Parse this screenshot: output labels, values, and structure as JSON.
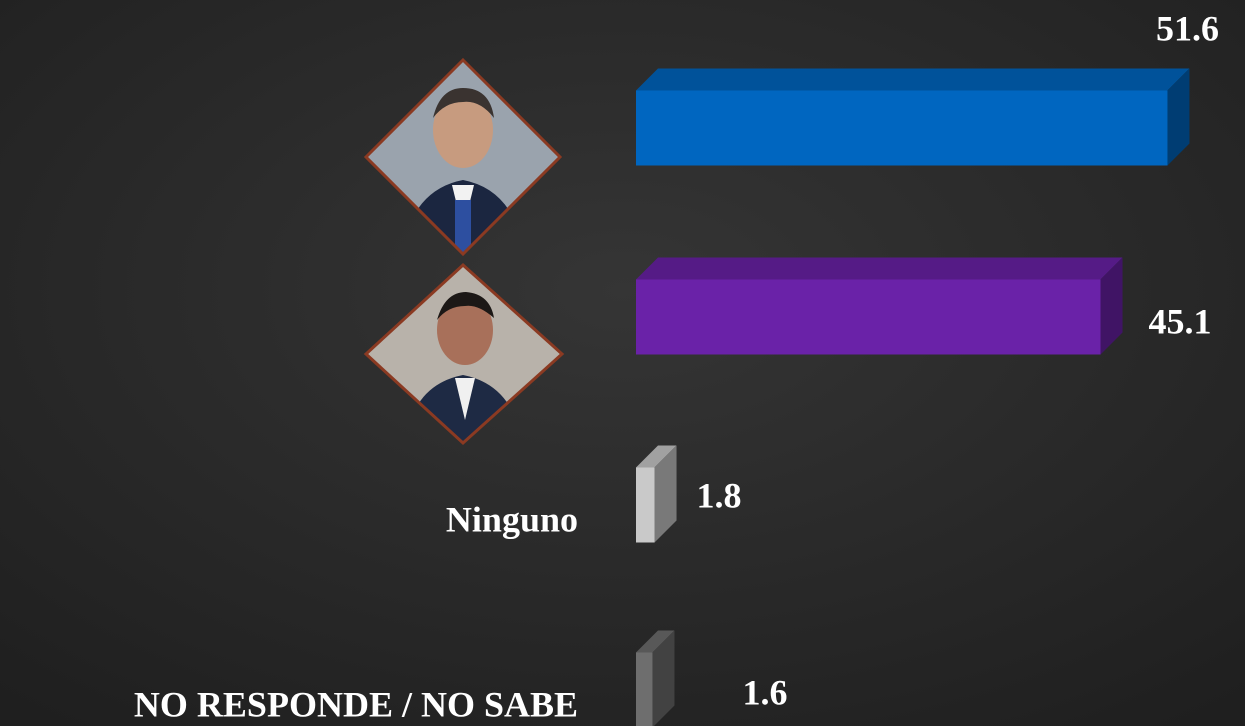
{
  "chart_data": {
    "type": "bar3d_horizontal",
    "categories": [
      null,
      null,
      "Ninguno",
      "NO RESPONDE / NO SABE"
    ],
    "values": [
      51.6,
      45.1,
      1.8,
      1.6
    ],
    "colors": [
      "#0066c0",
      "#6a22a8",
      "#c9c9c9",
      "#6e6e6e"
    ]
  }
}
